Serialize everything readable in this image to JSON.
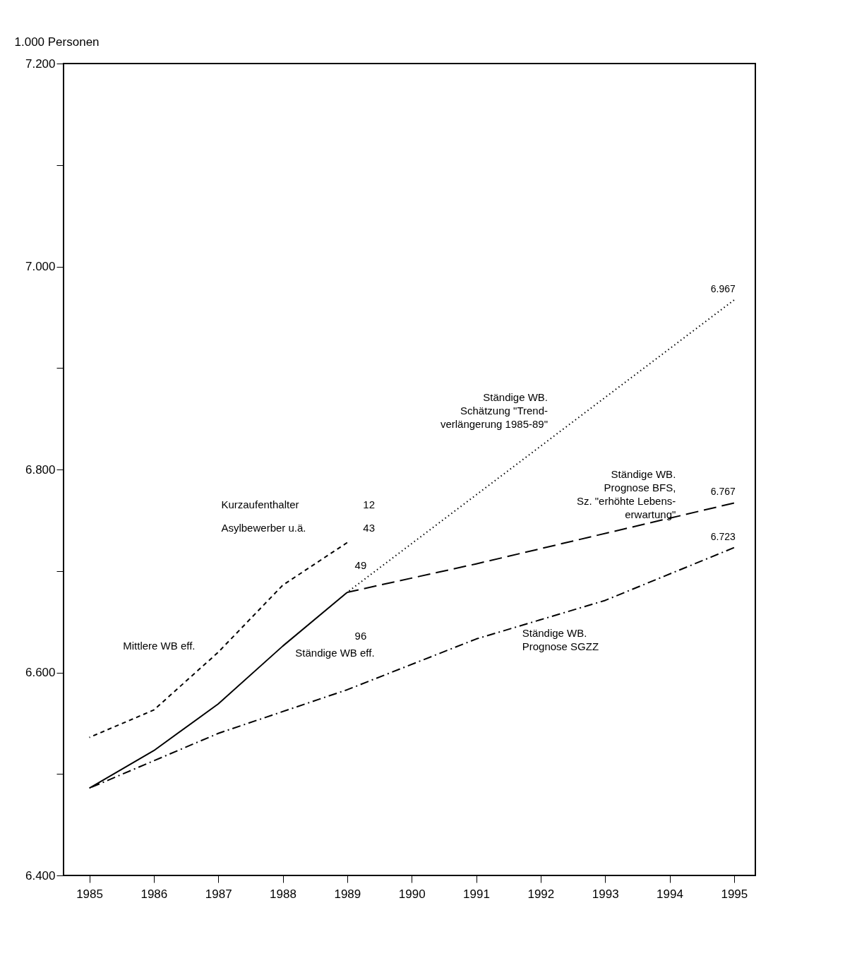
{
  "chart_data": {
    "type": "line",
    "ylabel": "1.000 Personen",
    "xlim": [
      1984.6,
      1995.33
    ],
    "ylim": [
      6400,
      7200
    ],
    "xticks": [
      1985,
      1986,
      1987,
      1988,
      1989,
      1990,
      1991,
      1992,
      1993,
      1994,
      1995
    ],
    "yticks": [
      {
        "value": 6400,
        "label": "6.400"
      },
      {
        "value": 6500,
        "label": null
      },
      {
        "value": 6600,
        "label": "6.600"
      },
      {
        "value": 6700,
        "label": null
      },
      {
        "value": 6800,
        "label": "6.800"
      },
      {
        "value": 6900,
        "label": null
      },
      {
        "value": 7000,
        "label": "7.000"
      },
      {
        "value": 7100,
        "label": null
      },
      {
        "value": 7200,
        "label": "7.200"
      }
    ],
    "grid": false,
    "marker": "none",
    "series": [
      {
        "name": "Ständige WB eff.",
        "color": "#000000",
        "line_style": "solid",
        "x": [
          1985,
          1986,
          1987,
          1988,
          1989
        ],
        "values": [
          6486,
          6523,
          6569,
          6626,
          6679
        ]
      },
      {
        "name": "Mittlere WB eff.",
        "color": "#000000",
        "line_style": "dashed",
        "x": [
          1985,
          1986,
          1987,
          1988,
          1989
        ],
        "values": [
          6536,
          6563,
          6620,
          6686,
          6728
        ]
      },
      {
        "name": "Ständige WB.\nSchätzung \"Trend-\nverlängerung 1985-89\"",
        "color": "#000000",
        "line_style": "dotted",
        "x": [
          1989,
          1995
        ],
        "values": [
          6679,
          6967
        ],
        "value_labels": [
          null,
          "6.967"
        ]
      },
      {
        "name": "Ständige WB.\nPrognose BFS,\nSz. \"erhöhte Lebens-\nerwartung\"",
        "color": "#000000",
        "line_style": "longdash",
        "x": [
          1989,
          1991,
          1995
        ],
        "values": [
          6679,
          6707,
          6767
        ],
        "value_labels": [
          null,
          null,
          "6.767"
        ]
      },
      {
        "name": "Ständige WB.\nPrognose SGZZ",
        "color": "#000000",
        "line_style": "dashdot",
        "x": [
          1985,
          1987,
          1989,
          1991,
          1993,
          1995
        ],
        "values": [
          6486,
          6540,
          6583,
          6633,
          6671,
          6723
        ],
        "value_labels": [
          null,
          null,
          null,
          null,
          null,
          "6.723"
        ]
      }
    ],
    "annotations": [
      "Kurzaufenthalter",
      "Asylbewerber u.ä.",
      "12",
      "43",
      "49",
      "96"
    ]
  }
}
